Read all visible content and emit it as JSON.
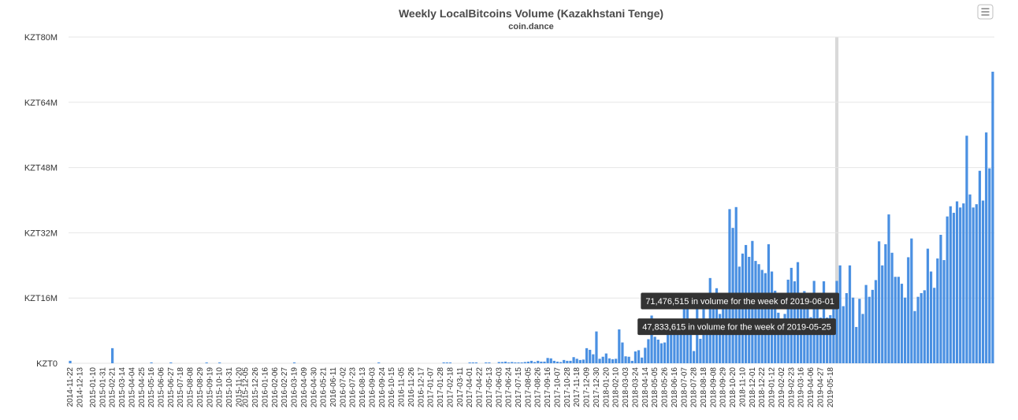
{
  "chart_data": {
    "type": "bar",
    "title": "Weekly LocalBitcoins Volume (Kazakhstani Tenge)",
    "subtitle": "coin.dance",
    "xlabel": "",
    "ylabel": "",
    "ylim": [
      0,
      80000000
    ],
    "y_ticks": [
      {
        "value": 0,
        "label": "KZT0"
      },
      {
        "value": 16000000,
        "label": "KZT16M"
      },
      {
        "value": 32000000,
        "label": "KZT32M"
      },
      {
        "value": 48000000,
        "label": "KZT48M"
      },
      {
        "value": 64000000,
        "label": "KZT64M"
      },
      {
        "value": 80000000,
        "label": "KZT80M"
      }
    ],
    "x_ticks": [
      "2014-11-22",
      "2014-12-13",
      "2015-01-10",
      "2015-01-31",
      "2015-02-21",
      "2015-03-14",
      "2015-04-04",
      "2015-04-25",
      "2015-05-16",
      "2015-06-06",
      "2015-06-27",
      "2015-07-18",
      "2015-08-08",
      "2015-08-29",
      "2015-09-19",
      "2015-10-10",
      "2015-10-31",
      "2015-11-20",
      "2015-12-05",
      "2015-12-26",
      "2016-01-16",
      "2016-02-06",
      "2016-02-27",
      "2016-03-19",
      "2016-04-09",
      "2016-04-30",
      "2016-05-21",
      "2016-06-11",
      "2016-07-02",
      "2016-07-23",
      "2016-08-13",
      "2016-09-03",
      "2016-09-24",
      "2016-10-15",
      "2016-11-05",
      "2016-11-26",
      "2016-12-17",
      "2017-01-07",
      "2017-01-28",
      "2017-02-18",
      "2017-03-11",
      "2017-04-01",
      "2017-04-22",
      "2017-05-13",
      "2017-06-03",
      "2017-06-24",
      "2017-07-15",
      "2017-08-05",
      "2017-08-26",
      "2017-09-16",
      "2017-10-07",
      "2017-10-28",
      "2017-11-18",
      "2017-12-09",
      "2017-12-30",
      "2018-01-20",
      "2018-02-10",
      "2018-03-03",
      "2018-03-24",
      "2018-04-14",
      "2018-05-05",
      "2018-05-26",
      "2018-06-16",
      "2018-07-07",
      "2018-07-28",
      "2018-08-18",
      "2018-09-08",
      "2018-09-29",
      "2018-10-20",
      "2018-11-10",
      "2018-12-01",
      "2018-12-22",
      "2019-01-12",
      "2019-02-02",
      "2019-02-23",
      "2019-03-16",
      "2019-04-06",
      "2019-04-27",
      "2019-05-18"
    ],
    "first_week": "2014-11-22",
    "last_week": "2019-06-01",
    "values_kzt_millions": [
      0.6,
      0,
      0,
      0,
      0,
      0,
      0,
      0,
      0,
      0,
      0,
      0,
      0,
      3.7,
      0,
      0,
      0,
      0,
      0,
      0,
      0,
      0,
      0,
      0,
      0,
      0.2,
      0,
      0,
      0,
      0,
      0,
      0.1,
      0,
      0,
      0,
      0,
      0,
      0,
      0,
      0,
      0,
      0,
      0.1,
      0,
      0,
      0,
      0.1,
      0,
      0,
      0,
      0,
      0,
      0,
      0,
      0,
      0,
      0,
      0,
      0,
      0,
      0,
      0,
      0,
      0,
      0,
      0,
      0,
      0,
      0,
      0.2,
      0,
      0,
      0,
      0,
      0,
      0,
      0,
      0,
      0,
      0,
      0,
      0,
      0,
      0,
      0,
      0,
      0,
      0,
      0,
      0,
      0,
      0,
      0,
      0,
      0,
      0.2,
      0,
      0,
      0,
      0,
      0,
      0,
      0,
      0,
      0,
      0,
      0,
      0,
      0,
      0,
      0,
      0,
      0,
      0,
      0,
      0.2,
      0.2,
      0.1,
      0,
      0,
      0,
      0,
      0,
      0.2,
      0.2,
      0.2,
      0,
      0,
      0.2,
      0.2,
      0,
      0,
      0.3,
      0.3,
      0.4,
      0.2,
      0.3,
      0.2,
      0.2,
      0.2,
      0.3,
      0.4,
      0.6,
      0.3,
      0.6,
      0.4,
      0.4,
      1.3,
      1.2,
      0.6,
      0.4,
      0.3,
      0.8,
      0.6,
      0.6,
      1.5,
      1.1,
      0.8,
      0.9,
      3.7,
      3.3,
      2.2,
      7.8,
      1.1,
      1.6,
      2.4,
      1.2,
      1.0,
      1.1,
      8.3,
      5.1,
      1.7,
      1.6,
      0.6,
      2.9,
      3.2,
      1.4,
      3.8,
      5.9,
      11.7,
      6.5,
      5.8,
      4.9,
      5.1,
      7.3,
      9.2,
      7.5,
      9.7,
      8.9,
      14.0,
      15.3,
      8.6,
      3.0,
      13.7,
      6.0,
      13.8,
      8.6,
      20.9,
      13.4,
      18.4,
      12.1,
      16.7,
      16.5,
      37.8,
      33.2,
      38.3,
      23.7,
      26.9,
      29.0,
      26.1,
      30.0,
      25.1,
      24.3,
      22.9,
      22.1,
      29.2,
      22.5,
      17.8,
      12.4,
      8.0,
      12.1,
      20.5,
      23.4,
      20.1,
      24.8,
      13.7,
      17.7,
      13.4,
      11.3,
      20.2,
      16.4,
      11.2,
      20.1,
      11.2,
      11.8,
      13.9,
      20.2,
      24.0,
      14.0,
      17.2,
      24.0,
      16.1,
      8.9,
      15.8,
      12.1,
      19.2,
      16.3,
      18.0,
      20.4,
      29.9,
      24.0,
      29.2,
      36.5,
      27.1,
      21.2,
      21.2,
      19.5,
      16.1,
      26.0,
      30.6,
      12.8,
      16.3,
      17.2,
      17.9,
      28.1,
      22.5,
      18.5,
      25.7,
      31.5,
      25.3,
      36.0,
      38.5,
      36.9,
      39.7,
      38.2,
      39.2,
      55.8,
      41.4,
      38.2,
      39.0,
      47.2,
      39.9,
      56.6,
      47.8,
      71.5
    ],
    "series": [
      {
        "name": "",
        "color": "#4a90e2"
      }
    ],
    "grid": true,
    "legend": "none",
    "tooltips": [
      {
        "week": "2019-06-01",
        "text": "71,476,515 in volume for the week of 2019-06-01"
      },
      {
        "week": "2019-05-25",
        "text": "47,833,615 in volume for the week of 2019-05-25"
      }
    ],
    "hover_week": "2019-06-01"
  },
  "ui": {
    "menu_icon": "hamburger-menu-icon",
    "tooltip_bg": "#333333",
    "grid_color": "#e6e6e6",
    "hover_band_color": "#d9d9d9"
  }
}
